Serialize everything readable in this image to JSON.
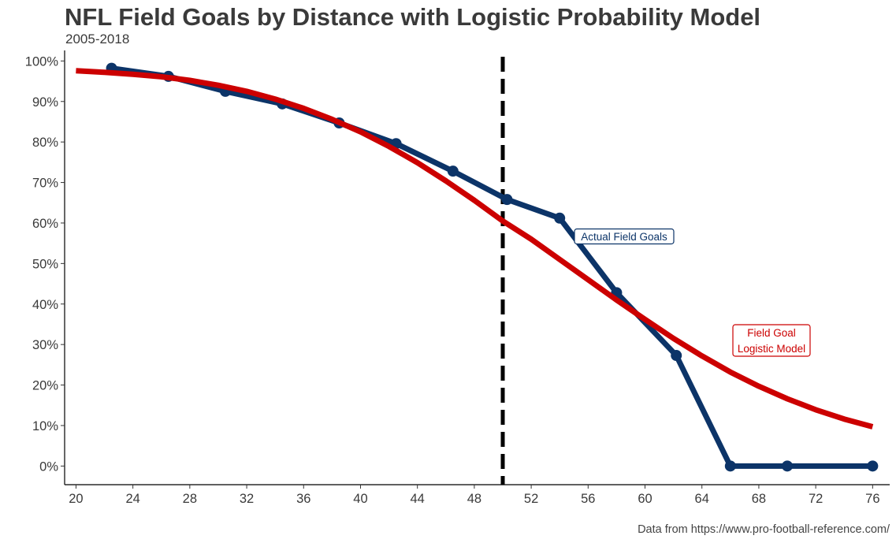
{
  "header": {
    "title": "NFL Field Goals by Distance with Logistic Probability Model",
    "subtitle": "2005-2018",
    "caption": "Data from https://www.pro-football-reference.com/"
  },
  "colors": {
    "actual": "#0c3468",
    "model": "#cc0000",
    "threshold": "#000000",
    "axis": "#3a3a3a"
  },
  "chart_data": {
    "type": "line",
    "title": "NFL Field Goals by Distance with Logistic Probability Model",
    "subtitle": "2005-2018",
    "xlabel": "",
    "ylabel": "",
    "xlim": [
      19.2,
      77.2
    ],
    "ylim": [
      -0.046,
      1.026
    ],
    "x_ticks": [
      20,
      24,
      28,
      32,
      36,
      40,
      44,
      48,
      52,
      56,
      60,
      64,
      68,
      72,
      76
    ],
    "y_ticks": [
      0,
      0.1,
      0.2,
      0.3,
      0.4,
      0.5,
      0.6,
      0.7,
      0.8,
      0.9,
      1.0
    ],
    "y_tick_labels": [
      "0%",
      "10%",
      "20%",
      "30%",
      "40%",
      "50%",
      "60%",
      "70%",
      "80%",
      "90%",
      "100%"
    ],
    "grid": false,
    "reference_lines": [
      {
        "axis": "x",
        "value": 50,
        "style": "dashed"
      }
    ],
    "series": [
      {
        "kind": "actual",
        "x": [
          22.5,
          26.5,
          30.5,
          34.5,
          38.5,
          42.5,
          46.5,
          50.3,
          54.0,
          58.0,
          62.2,
          66.0,
          70.0,
          76.0
        ],
        "y": [
          0.982,
          0.962,
          0.925,
          0.894,
          0.847,
          0.796,
          0.728,
          0.658,
          0.612,
          0.428,
          0.273,
          0.0,
          0.0,
          0.0
        ]
      },
      {
        "kind": "model",
        "x": [
          20,
          22,
          24,
          26,
          28,
          30,
          32,
          34,
          36,
          38,
          40,
          42,
          44,
          46,
          48,
          50,
          52,
          54,
          56,
          58,
          60,
          62,
          64,
          66,
          68,
          70,
          72,
          74,
          76
        ],
        "y": [
          0.976,
          0.972,
          0.967,
          0.961,
          0.952,
          0.94,
          0.925,
          0.906,
          0.883,
          0.856,
          0.825,
          0.789,
          0.749,
          0.704,
          0.656,
          0.605,
          0.56,
          0.51,
          0.46,
          0.41,
          0.362,
          0.315,
          0.272,
          0.232,
          0.197,
          0.166,
          0.139,
          0.116,
          0.097
        ]
      }
    ],
    "annotations": [
      {
        "text": "Actual Field Goals",
        "series": "actual"
      },
      {
        "text": "Field Goal\nLogistic Model",
        "series": "model"
      }
    ]
  }
}
